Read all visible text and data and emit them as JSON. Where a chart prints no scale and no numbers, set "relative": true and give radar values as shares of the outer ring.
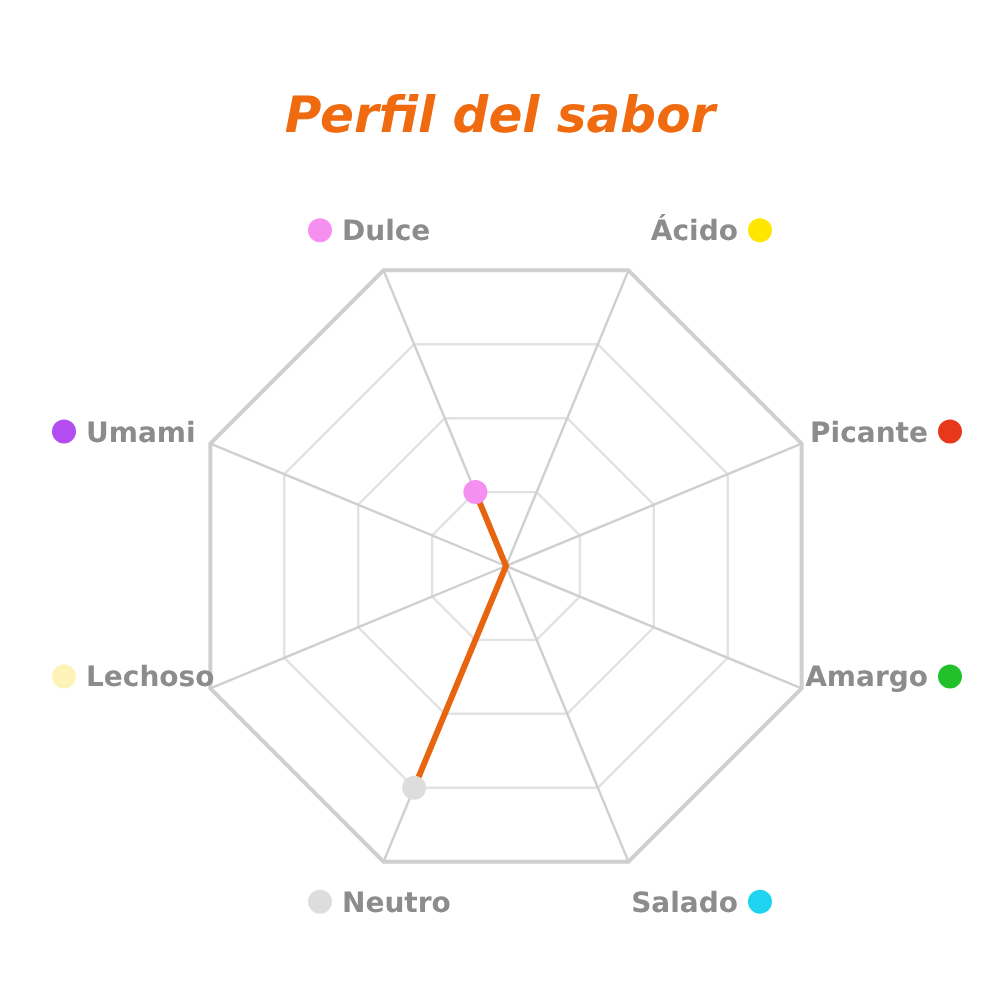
{
  "chart_data": {
    "type": "radar",
    "title": "Perfil del sabor",
    "relative": true,
    "grid": true,
    "marker": "circle",
    "categories": [
      "Ácido",
      "Picante",
      "Amargo",
      "Salado",
      "Neutro",
      "Lechoso",
      "Umami",
      "Dulce"
    ],
    "colors": [
      "#ffe600",
      "#e8381c",
      "#22c02a",
      "#1ed4f0",
      "#dddddd",
      "#fdf3b8",
      "#b34df0",
      "#f58ff0"
    ],
    "series": [
      {
        "color": "#e8650f",
        "values": [
          0,
          0,
          0,
          0,
          0.75,
          0,
          0,
          0.25
        ]
      }
    ]
  }
}
